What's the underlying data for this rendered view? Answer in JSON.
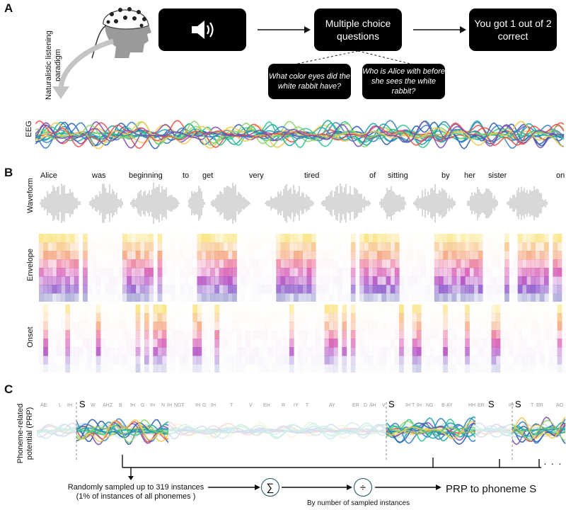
{
  "panel_a": {
    "letter": "A",
    "paradigm_label": "Naturalistic listening paradigm",
    "speaker_icon": "speaker-icon",
    "questions_box": "Multiple choice questions",
    "result_box": "You got 1 out of 2 correct",
    "question_1": "What color eyes did the white rabbit have?",
    "question_2": "Who is Alice with before she sees the white rabbit?",
    "eeg_label": "EEG"
  },
  "panel_b": {
    "letter": "B",
    "words": [
      "Alice",
      "was",
      "beginning",
      "to",
      "get",
      "very",
      "tired",
      "of",
      "sitting",
      "by",
      "her",
      "sister",
      "on"
    ],
    "waveform_label": "Waveform",
    "envelope_label": "Envelope",
    "onset_label": "Onset"
  },
  "panel_c": {
    "letter": "C",
    "prp_label": "Phoneme-related potential (PRP)",
    "phonemes": [
      "AE",
      "L",
      "IH",
      "S",
      "W",
      "AHZ",
      "B",
      "IH",
      "G",
      "IH",
      "N",
      "IH",
      "NGT",
      "IH",
      "G",
      "IH",
      "T",
      "V",
      "EH",
      "R",
      "IY",
      "T",
      "AY",
      "ER",
      "D",
      "AH",
      "V",
      "S",
      "IH",
      "T",
      "IH",
      "NG",
      "B",
      "AY",
      "HH",
      "ER",
      "S",
      "IH",
      "S",
      "T",
      "ER",
      "AO"
    ],
    "target_phoneme": "S",
    "sample_text": "Randomly sampled up to 319 instances",
    "sample_subtext": "(1% of instances of all phonemes )",
    "sum_symbol": "∑",
    "divide_symbol": "÷",
    "divide_caption": "By number of sampled instances",
    "result": "PRP to phoneme S",
    "ellipsis": "· · ·"
  },
  "colors": {
    "eeg_palette": [
      "#2b5fb0",
      "#3b7fc4",
      "#1aa6a6",
      "#2ec48f",
      "#8fd46a",
      "#f2c94c",
      "#e8514f",
      "#7e4fb0"
    ],
    "waveform": "#bdbdbd",
    "heat_low": "#f7ecf5",
    "heat_mid": "#e255b5",
    "heat_high": "#7a2ea8",
    "heat_yellow": "#f9e27a",
    "operator_ring": "#1f4f5f"
  }
}
